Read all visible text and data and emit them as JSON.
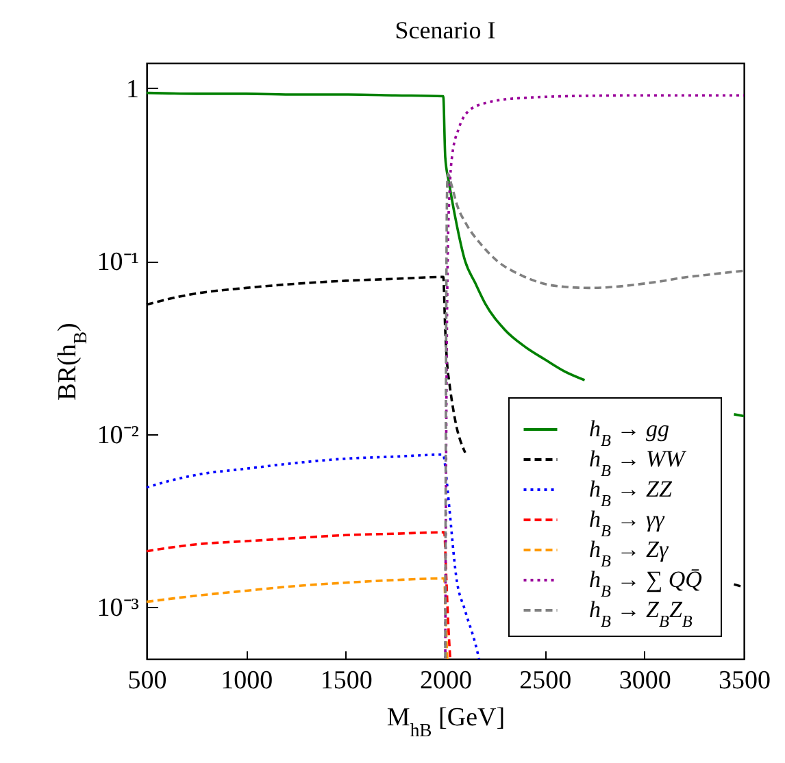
{
  "chart_data": {
    "type": "line",
    "title": "Scenario I",
    "xlabel": "M$_{hB}$ [GeV]",
    "ylabel": "BR(h$_{B}$)",
    "log": "y",
    "grid": false,
    "legend": "bottom right",
    "marker": "none",
    "xlim": [
      500,
      3500
    ],
    "xticks": [
      500,
      1000,
      1500,
      2000,
      2500,
      3000,
      3500
    ],
    "ylim": [
      0.0005,
      1.4
    ],
    "yticks": [
      1,
      {
        "value": 0.1,
        "label": "10⁻¹"
      },
      {
        "value": 0.01,
        "label": "10⁻²"
      },
      {
        "value": 0.001,
        "label": "10⁻³"
      }
    ],
    "series": [
      {
        "name": "h$_{B}$ → gg",
        "color": "#008000",
        "line_style": "solid",
        "x": [
          500,
          750,
          1000,
          1250,
          1500,
          1750,
          1990,
          2000,
          2020,
          2050,
          2100,
          2150,
          2200,
          2300,
          2400,
          2500,
          2600,
          2700,
          2800,
          2900,
          3000,
          3100,
          3200,
          3300,
          3400,
          3450,
          3500
        ],
        "values": [
          0.94,
          0.93,
          0.93,
          0.92,
          0.92,
          0.91,
          0.9,
          0.4,
          0.28,
          0.18,
          0.1,
          0.075,
          0.057,
          0.04,
          0.032,
          0.027,
          0.023,
          0.0205,
          null,
          null,
          null,
          null,
          null,
          null,
          null,
          0.013,
          0.0127
        ]
      },
      {
        "name": "h$_{B}$ → WW",
        "color": "#000000",
        "line_style": "dashed",
        "x": [
          500,
          600,
          750,
          1000,
          1250,
          1500,
          1750,
          1990,
          2000,
          2010,
          2020,
          2050,
          2100,
          2150,
          3400,
          3450,
          3500
        ],
        "values": [
          0.056,
          0.06,
          0.065,
          0.07,
          0.074,
          0.077,
          0.079,
          0.081,
          0.04,
          0.025,
          0.02,
          0.012,
          0.0078,
          null,
          null,
          0.00135,
          0.0013
        ]
      },
      {
        "name": "h$_{B}$ → ZZ",
        "color": "#0000ff",
        "line_style": "dotted",
        "x": [
          500,
          600,
          750,
          1000,
          1250,
          1500,
          1750,
          1990,
          2000,
          2010,
          2020,
          2055,
          2100,
          2150,
          2170
        ],
        "values": [
          0.0049,
          0.0053,
          0.0058,
          0.0063,
          0.0068,
          0.0072,
          0.0074,
          0.0076,
          0.0065,
          0.005,
          0.0038,
          0.0015,
          0.00095,
          0.00062,
          0.0005
        ]
      },
      {
        "name": "h$_{B}$ → γγ",
        "color": "#ff0000",
        "line_style": "dashed",
        "x": [
          500,
          750,
          1000,
          1250,
          1500,
          1750,
          1995,
          2005,
          2015,
          2025
        ],
        "values": [
          0.0021,
          0.0023,
          0.0024,
          0.0025,
          0.0026,
          0.00265,
          0.0027,
          0.0015,
          0.0008,
          0.0005
        ]
      },
      {
        "name": "h$_{B}$ → Zγ",
        "color": "#ff9900",
        "line_style": "dashed",
        "x": [
          500,
          750,
          1000,
          1250,
          1500,
          1750,
          1995,
          2003,
          2010
        ],
        "values": [
          0.00107,
          0.00116,
          0.00124,
          0.00132,
          0.00138,
          0.00143,
          0.00146,
          0.0008,
          0.0005
        ]
      },
      {
        "name": "h$_{B}$ → ∑ QQ̄",
        "color": "#990099",
        "line_style": "dotted",
        "x": [
          2000,
          2005,
          2012,
          2025,
          2035,
          2069,
          2124,
          2200,
          2290,
          2400,
          2606,
          3000,
          3500
        ],
        "values": [
          0.0005,
          0.01,
          0.1,
          0.3,
          0.41,
          0.59,
          0.75,
          0.82,
          0.86,
          0.88,
          0.9,
          0.91,
          0.91
        ]
      },
      {
        "name": "h$_{B}$ → Z$_{B}$Z$_{B}$",
        "color": "#808080",
        "line_style": "dashed",
        "x": [
          2000,
          2005,
          2010,
          2014,
          2030,
          2060,
          2104,
          2180,
          2262,
          2380,
          2496,
          2600,
          2723,
          2850,
          2950,
          3100,
          3185,
          3300,
          3500
        ],
        "values": [
          0.0005,
          0.05,
          0.28,
          0.32,
          0.28,
          0.21,
          0.165,
          0.125,
          0.1,
          0.083,
          0.074,
          0.071,
          0.07,
          0.071,
          0.073,
          0.077,
          0.08,
          0.083,
          0.088
        ]
      }
    ]
  }
}
